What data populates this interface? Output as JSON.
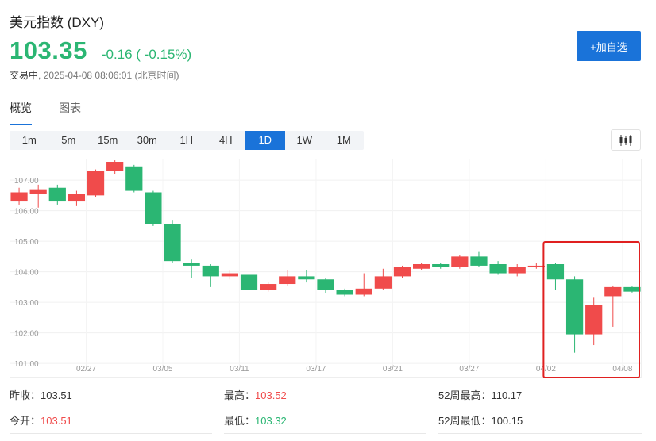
{
  "header": {
    "title": "美元指数 (DXY)",
    "price": "103.35",
    "change": "-0.16 ( -0.15%)",
    "status_label": "交易中",
    "timestamp": "2025-04-08 08:06:01 (北京时间)"
  },
  "add_button": "+加自选",
  "tabs": [
    "概览",
    "图表"
  ],
  "periods": [
    "1m",
    "5m",
    "15m",
    "30m",
    "1H",
    "4H",
    "1D",
    "1W",
    "1M"
  ],
  "active_period": "1D",
  "colors": {
    "up": "#f04b4b",
    "down": "#2bb673",
    "accent": "#1a73d9",
    "highlight": "#e02020"
  },
  "stats": {
    "prev_close_label": "昨收：",
    "prev_close": "103.51",
    "open_label": "今开：",
    "open": "103.51",
    "high_label": "最高：",
    "high": "103.52",
    "low_label": "最低：",
    "low": "103.32",
    "w52_high_label": "52周最高：",
    "w52_high": "110.17",
    "w52_low_label": "52周最低：",
    "w52_low": "100.15"
  },
  "chart_data": {
    "type": "candlestick",
    "y_ticks": [
      "107.00",
      "106.00",
      "105.00",
      "104.00",
      "103.00",
      "102.00",
      "101.00"
    ],
    "y_tick_values": [
      107,
      106,
      105,
      104,
      103,
      102,
      101
    ],
    "ylim": [
      100.9,
      107.6
    ],
    "x_ticks": [
      "02/27",
      "03/05",
      "03/11",
      "03/17",
      "03/21",
      "03/27",
      "04/02",
      "04/08"
    ],
    "x_tick_index": [
      3.5,
      7.5,
      11.5,
      15.5,
      19.5,
      23.5,
      27.5,
      31.5
    ],
    "candles": [
      {
        "o": 106.3,
        "c": 106.6,
        "h": 106.75,
        "l": 106.2
      },
      {
        "o": 106.55,
        "c": 106.7,
        "h": 106.85,
        "l": 106.1
      },
      {
        "o": 106.75,
        "c": 106.3,
        "h": 106.85,
        "l": 106.2
      },
      {
        "o": 106.3,
        "c": 106.55,
        "h": 106.65,
        "l": 106.15
      },
      {
        "o": 106.5,
        "c": 107.3,
        "h": 107.35,
        "l": 106.45
      },
      {
        "o": 107.3,
        "c": 107.6,
        "h": 107.65,
        "l": 107.2
      },
      {
        "o": 107.45,
        "c": 106.65,
        "h": 107.5,
        "l": 106.6
      },
      {
        "o": 106.6,
        "c": 105.55,
        "h": 106.65,
        "l": 105.5
      },
      {
        "o": 105.55,
        "c": 104.35,
        "h": 105.7,
        "l": 104.3
      },
      {
        "o": 104.3,
        "c": 104.2,
        "h": 104.4,
        "l": 103.8
      },
      {
        "o": 104.2,
        "c": 103.85,
        "h": 104.25,
        "l": 103.5
      },
      {
        "o": 103.85,
        "c": 103.95,
        "h": 104.05,
        "l": 103.75
      },
      {
        "o": 103.9,
        "c": 103.4,
        "h": 103.95,
        "l": 103.25
      },
      {
        "o": 103.4,
        "c": 103.6,
        "h": 103.65,
        "l": 103.35
      },
      {
        "o": 103.6,
        "c": 103.85,
        "h": 104.05,
        "l": 103.55
      },
      {
        "o": 103.85,
        "c": 103.75,
        "h": 104.05,
        "l": 103.65
      },
      {
        "o": 103.75,
        "c": 103.4,
        "h": 103.8,
        "l": 103.3
      },
      {
        "o": 103.4,
        "c": 103.25,
        "h": 103.45,
        "l": 103.2
      },
      {
        "o": 103.25,
        "c": 103.45,
        "h": 103.95,
        "l": 103.2
      },
      {
        "o": 103.45,
        "c": 103.85,
        "h": 104.1,
        "l": 103.4
      },
      {
        "o": 103.85,
        "c": 104.15,
        "h": 104.2,
        "l": 103.8
      },
      {
        "o": 104.1,
        "c": 104.25,
        "h": 104.3,
        "l": 104.05
      },
      {
        "o": 104.25,
        "c": 104.15,
        "h": 104.3,
        "l": 104.1
      },
      {
        "o": 104.15,
        "c": 104.5,
        "h": 104.55,
        "l": 104.1
      },
      {
        "o": 104.5,
        "c": 104.2,
        "h": 104.65,
        "l": 104.15
      },
      {
        "o": 104.25,
        "c": 103.95,
        "h": 104.35,
        "l": 103.9
      },
      {
        "o": 103.95,
        "c": 104.15,
        "h": 104.25,
        "l": 103.85
      },
      {
        "o": 104.15,
        "c": 104.2,
        "h": 104.3,
        "l": 104.1
      },
      {
        "o": 104.25,
        "c": 103.75,
        "h": 104.3,
        "l": 103.4
      },
      {
        "o": 103.75,
        "c": 101.95,
        "h": 103.85,
        "l": 101.35
      },
      {
        "o": 101.95,
        "c": 102.9,
        "h": 103.15,
        "l": 101.6
      },
      {
        "o": 103.2,
        "c": 103.5,
        "h": 103.55,
        "l": 102.2
      },
      {
        "o": 103.5,
        "c": 103.35,
        "h": 103.52,
        "l": 103.32
      }
    ],
    "highlight_from_index": 28
  }
}
